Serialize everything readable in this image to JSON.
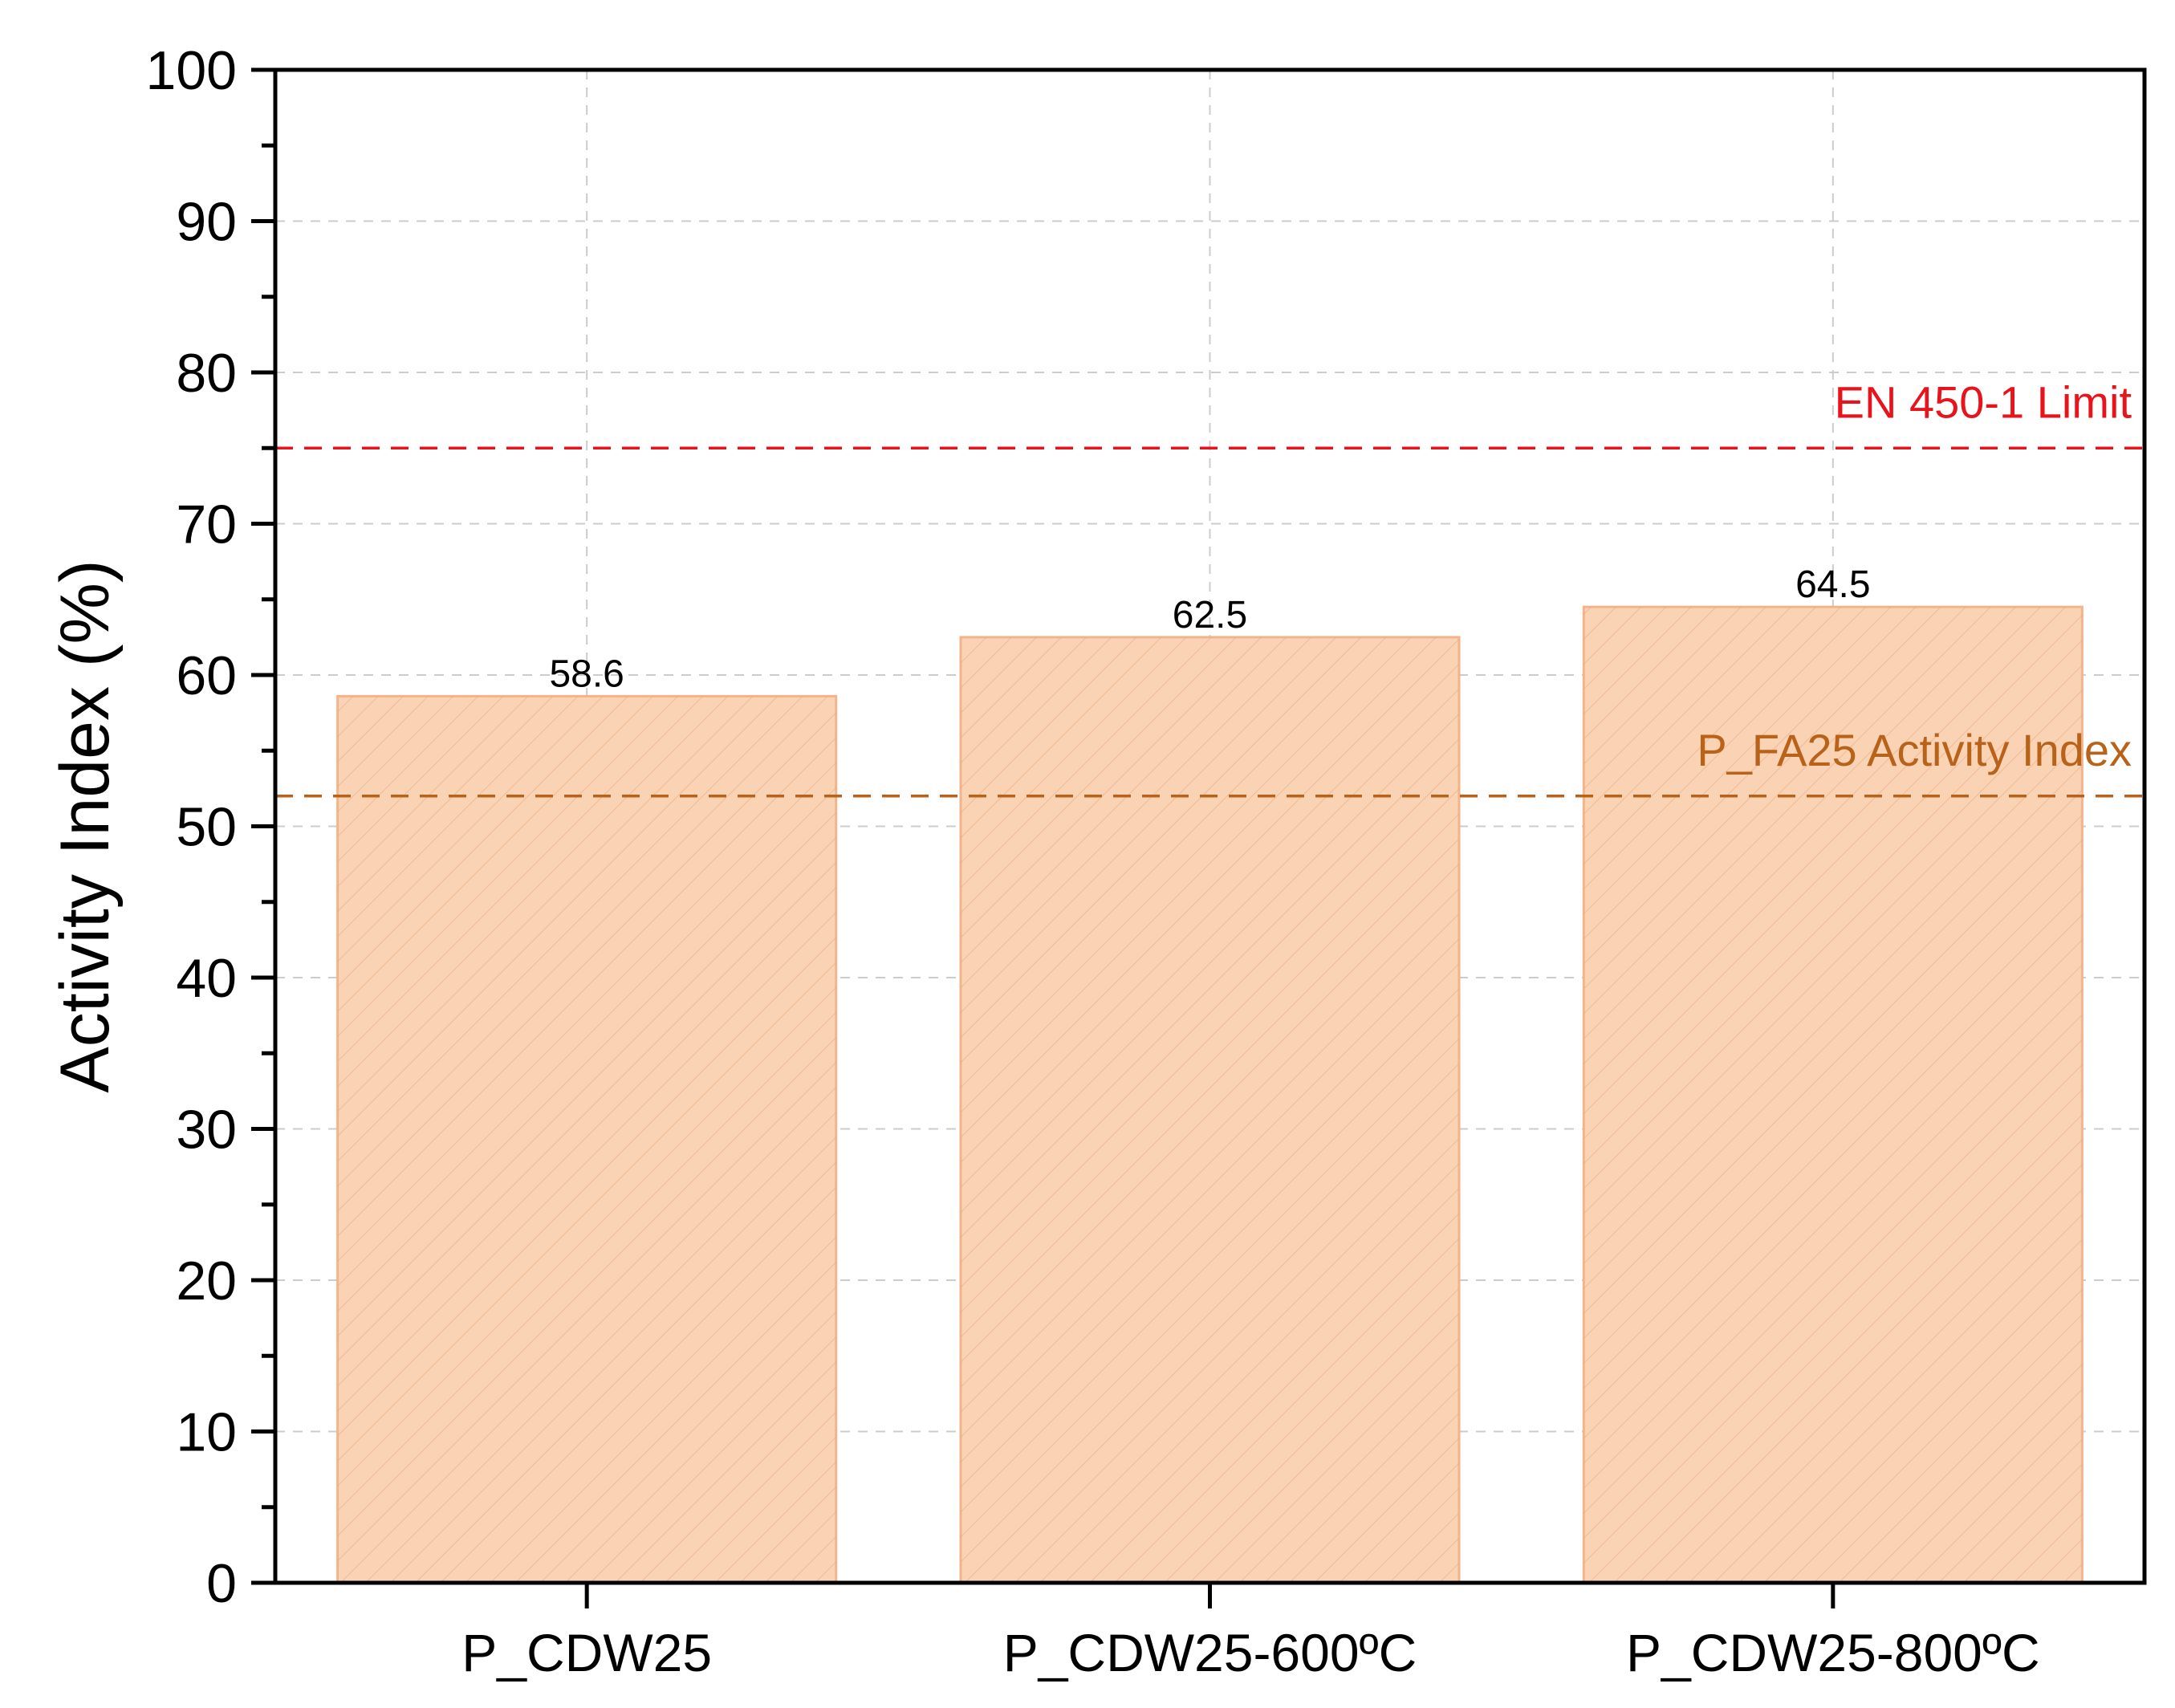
{
  "chart_data": {
    "type": "bar",
    "title": "",
    "xlabel": "",
    "ylabel": "Activity Index (%)",
    "ylim": [
      0,
      100
    ],
    "yticks": [
      0,
      10,
      20,
      30,
      40,
      50,
      60,
      70,
      80,
      90,
      100
    ],
    "grid": true,
    "categories": [
      "P_CDW25",
      "P_CDW25-600ºC",
      "P_CDW25-800ºC"
    ],
    "values": [
      58.6,
      62.5,
      64.5
    ],
    "data_labels": [
      "58.6",
      "62.5",
      "64.5"
    ],
    "bar_fill": "#f9d3b4",
    "bar_stroke": "#f2b48a",
    "bar_pattern": "diagonal-hatch",
    "reference_lines": [
      {
        "name": "EN 450-1 Limit",
        "value": 75,
        "color": "#e8141c",
        "style": "dashed"
      },
      {
        "name": "P_FA25 Activity Index",
        "value": 52,
        "color": "#b8621a",
        "style": "dashed"
      }
    ]
  }
}
